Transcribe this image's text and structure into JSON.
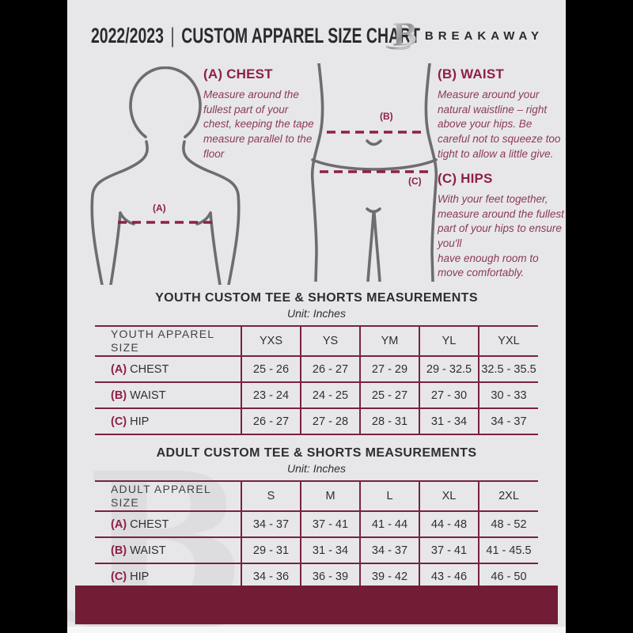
{
  "colors": {
    "outer_background": "#000000",
    "page_background": "#e7e7e9",
    "maroon_footer": "#721d36",
    "maroon_border": "#7a2240",
    "maroon_heading": "#8e2044",
    "maroon_body_text": "#8c3a55",
    "dark_text": "#2e2e30",
    "figure_gray": "#6d6d70",
    "watermark_gray": "#dcdcdf"
  },
  "header": {
    "season": "2022/2023",
    "separator": "|",
    "title": "CUSTOM APPAREL SIZE CHART",
    "brand": "BREAKAWAY",
    "logo_glyph": "B"
  },
  "watermark_glyph": "B",
  "measurements": {
    "chest": {
      "heading": "(A) CHEST",
      "body": "Measure around the fullest part of your chest, keeping the tape measure parallel to the floor",
      "marker": "(A)"
    },
    "waist": {
      "heading": "(B) WAIST",
      "body": "Measure around your natural waistline – right above your hips. Be careful not to squeeze too tight to allow a little give.",
      "marker": "(B)"
    },
    "hips": {
      "heading": "(C) HIPS",
      "body": "With your feet together, measure around the fullest part of your hips to ensure you'll\nhave enough room to move comfortably.",
      "marker": "(C)"
    }
  },
  "tables": [
    {
      "title": "YOUTH CUSTOM TEE & SHORTS MEASUREMENTS",
      "unit": "Unit: Inches",
      "header_label": "YOUTH APPAREL SIZE",
      "sizes": [
        "YXS",
        "YS",
        "YM",
        "YL",
        "YXL"
      ],
      "rows": [
        {
          "prefix": "(A)",
          "label": "CHEST",
          "values": [
            "25 - 26",
            "26 - 27",
            "27 - 29",
            "29 - 32.5",
            "32.5 - 35.5"
          ]
        },
        {
          "prefix": "(B)",
          "label": "WAIST",
          "values": [
            "23 - 24",
            "24 - 25",
            "25 - 27",
            "27 - 30",
            "30 - 33"
          ]
        },
        {
          "prefix": "(C)",
          "label": "HIP",
          "values": [
            "26 - 27",
            "27 - 28",
            "28 - 31",
            "31 - 34",
            "34 - 37"
          ]
        }
      ]
    },
    {
      "title": "ADULT CUSTOM TEE & SHORTS MEASUREMENTS",
      "unit": "Unit: Inches",
      "header_label": "ADULT APPAREL SIZE",
      "sizes": [
        "S",
        "M",
        "L",
        "XL",
        "2XL"
      ],
      "rows": [
        {
          "prefix": "(A)",
          "label": "CHEST",
          "values": [
            "34 - 37",
            "37 - 41",
            "41 - 44",
            "44 - 48",
            "48 - 52"
          ]
        },
        {
          "prefix": "(B)",
          "label": "WAIST",
          "values": [
            "29 - 31",
            "31 - 34",
            "34 - 37",
            "37 - 41",
            "41 - 45.5"
          ]
        },
        {
          "prefix": "(C)",
          "label": "HIP",
          "values": [
            "34 - 36",
            "36 - 39",
            "39 - 42",
            "43 - 46",
            "46 - 50"
          ]
        }
      ]
    }
  ]
}
